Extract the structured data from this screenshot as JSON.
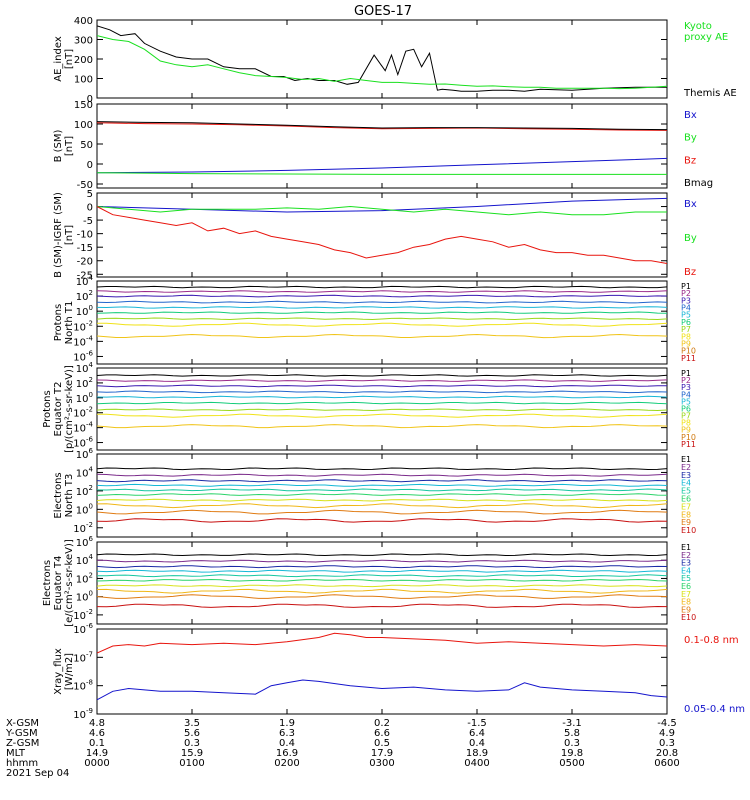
{
  "title": "GOES-17",
  "colors": {
    "black": "#000000",
    "red": "#e8150e",
    "green": "#19e01f",
    "blue": "#1414cc",
    "darkred": "#9a0a18",
    "p_channels": [
      "#000000",
      "#9a2a8a",
      "#3a1ab2",
      "#2266cc",
      "#17b6d6",
      "#13cc7a",
      "#9ad81a",
      "#f0e218",
      "#f0c418",
      "#d07a10",
      "#c81010"
    ],
    "e_channels": [
      "#000000",
      "#7a2a8a",
      "#1a2aa6",
      "#15b8d6",
      "#17c7a0",
      "#2bd36a",
      "#d8e21a",
      "#f0b718",
      "#e07b12",
      "#c81010"
    ]
  },
  "ticks": {
    "time": [
      0,
      60,
      120,
      180,
      240,
      300,
      360
    ],
    "rows": [
      {
        "label": "X-GSM",
        "values": [
          "4.8",
          "3.5",
          "1.9",
          "0.2",
          "-1.5",
          "-3.1",
          "-4.5"
        ]
      },
      {
        "label": "Y-GSM",
        "values": [
          "4.6",
          "5.6",
          "6.3",
          "6.6",
          "6.4",
          "5.8",
          "4.9"
        ]
      },
      {
        "label": "Z-GSM",
        "values": [
          "0.1",
          "0.3",
          "0.4",
          "0.5",
          "0.4",
          "0.3",
          "0.3"
        ]
      },
      {
        "label": "MLT",
        "values": [
          "14.9",
          "15.9",
          "16.9",
          "17.9",
          "18.9",
          "19.8",
          "20.8"
        ]
      },
      {
        "label": "hhmm",
        "values": [
          "0000",
          "0100",
          "0200",
          "0300",
          "0400",
          "0500",
          "0600"
        ]
      }
    ],
    "date": "2021 Sep 04"
  },
  "chart_data": [
    {
      "type": "line",
      "ylabel": "AE_index\n[nT]",
      "scale": "linear",
      "ylim": [
        0,
        400
      ],
      "yticks": [
        "0",
        "100",
        "200",
        "300",
        "400"
      ],
      "ytick_values": [
        0,
        100,
        200,
        300,
        400
      ],
      "legend": [
        {
          "text": "Kyoto\nproxy AE",
          "color": "#19e01f"
        },
        {
          "text": "Themis AE",
          "color": "#000000"
        }
      ],
      "series": [
        {
          "name": "Themis AE",
          "color": "#000000",
          "x": [
            0,
            8,
            15,
            24,
            30,
            40,
            50,
            60,
            70,
            80,
            90,
            100,
            110,
            118,
            125,
            133,
            140,
            150,
            158,
            165,
            175,
            182,
            186,
            190,
            195,
            200,
            205,
            210,
            215,
            218,
            225,
            230,
            240,
            250,
            260,
            270,
            280,
            300,
            320,
            340,
            360
          ],
          "y": [
            370,
            350,
            320,
            330,
            280,
            240,
            210,
            200,
            200,
            160,
            150,
            150,
            110,
            110,
            90,
            100,
            90,
            90,
            70,
            80,
            220,
            140,
            220,
            120,
            240,
            250,
            160,
            230,
            40,
            45,
            40,
            35,
            35,
            40,
            40,
            35,
            45,
            40,
            50,
            55,
            55
          ]
        },
        {
          "name": "Kyoto proxy AE",
          "color": "#19e01f",
          "x": [
            0,
            10,
            20,
            30,
            40,
            50,
            60,
            70,
            80,
            90,
            100,
            110,
            120,
            130,
            140,
            150,
            160,
            170,
            180,
            190,
            200,
            210,
            220,
            230,
            240,
            250,
            260,
            270,
            280,
            290,
            300,
            310,
            320,
            330,
            340,
            350,
            360
          ],
          "y": [
            320,
            300,
            290,
            250,
            190,
            170,
            160,
            170,
            150,
            130,
            115,
            110,
            105,
            95,
            100,
            85,
            100,
            90,
            80,
            80,
            75,
            70,
            72,
            65,
            60,
            62,
            58,
            55,
            55,
            50,
            50,
            50,
            50,
            48,
            50,
            55,
            60
          ]
        }
      ]
    },
    {
      "type": "line",
      "ylabel": "B (SM)\n[nT]",
      "scale": "linear",
      "ylim": [
        -60,
        150
      ],
      "yticks": [
        "-50",
        "0",
        "50",
        "100",
        "150"
      ],
      "ytick_values": [
        -50,
        0,
        50,
        100,
        150
      ],
      "legend": [
        {
          "text": "Bx",
          "color": "#1414cc"
        },
        {
          "text": "By",
          "color": "#19e01f"
        },
        {
          "text": "Bz",
          "color": "#e8150e"
        },
        {
          "text": "Bmag",
          "color": "#000000"
        }
      ],
      "series": [
        {
          "name": "Bx",
          "color": "#1414cc",
          "x": [
            0,
            60,
            120,
            180,
            240,
            300,
            360
          ],
          "y": [
            -22,
            -20,
            -16,
            -10,
            -2,
            6,
            14
          ]
        },
        {
          "name": "By",
          "color": "#19e01f",
          "x": [
            0,
            60,
            120,
            180,
            240,
            300,
            360
          ],
          "y": [
            -22,
            -24,
            -25,
            -26,
            -26,
            -26,
            -26
          ]
        },
        {
          "name": "Bz",
          "color": "#e8150e",
          "x": [
            0,
            30,
            60,
            90,
            120,
            150,
            180,
            210,
            240,
            270,
            300,
            330,
            360
          ],
          "y": [
            103,
            101,
            100,
            98,
            95,
            91,
            88,
            89,
            90,
            88,
            87,
            85,
            84
          ]
        },
        {
          "name": "Bmag",
          "color": "#000000",
          "x": [
            0,
            30,
            60,
            90,
            120,
            150,
            180,
            210,
            240,
            270,
            300,
            330,
            360
          ],
          "y": [
            106,
            104,
            103,
            100,
            97,
            93,
            90,
            91,
            91,
            90,
            89,
            87,
            86
          ]
        }
      ]
    },
    {
      "type": "line",
      "ylabel": "B (SM)-IGRF (SM)\n[nT]",
      "scale": "linear",
      "ylim": [
        -26,
        5
      ],
      "yticks": [
        "-25",
        "-20",
        "-15",
        "-10",
        "-5",
        "0",
        "5"
      ],
      "ytick_values": [
        -25,
        -20,
        -15,
        -10,
        -5,
        0,
        5
      ],
      "legend": [
        {
          "text": "Bx",
          "color": "#1414cc"
        },
        {
          "text": "By",
          "color": "#19e01f"
        },
        {
          "text": "Bz",
          "color": "#e8150e"
        }
      ],
      "series": [
        {
          "name": "Bx",
          "color": "#1414cc",
          "x": [
            0,
            60,
            120,
            180,
            240,
            300,
            360
          ],
          "y": [
            0,
            -1,
            -2,
            -1.5,
            0,
            2,
            3
          ]
        },
        {
          "name": "By",
          "color": "#19e01f",
          "x": [
            0,
            20,
            40,
            60,
            80,
            100,
            120,
            140,
            160,
            180,
            200,
            220,
            240,
            260,
            280,
            300,
            320,
            340,
            360
          ],
          "y": [
            0,
            -1,
            -2,
            -1,
            -1,
            -1,
            -0.5,
            -1,
            0,
            -1,
            -2,
            -1,
            -2,
            -3,
            -2,
            -3,
            -3,
            -2,
            -2
          ]
        },
        {
          "name": "Bz",
          "color": "#e8150e",
          "x": [
            0,
            10,
            20,
            30,
            40,
            50,
            60,
            70,
            80,
            90,
            100,
            110,
            120,
            130,
            140,
            150,
            160,
            170,
            180,
            190,
            200,
            210,
            220,
            230,
            240,
            250,
            260,
            270,
            280,
            290,
            300,
            310,
            320,
            330,
            340,
            350,
            360
          ],
          "y": [
            0,
            -3,
            -4,
            -5,
            -6,
            -7,
            -6,
            -9,
            -8,
            -10,
            -9,
            -11,
            -12,
            -13,
            -14,
            -16,
            -17,
            -19,
            -18,
            -17,
            -15,
            -14,
            -12,
            -11,
            -12,
            -13,
            -15,
            -14,
            -16,
            -17,
            -17,
            -18,
            -18,
            -19,
            -20,
            -20,
            -21
          ]
        }
      ]
    },
    {
      "type": "line",
      "ylabel": "Protons\nNorth T1",
      "scale": "log",
      "ylim": [
        -7,
        4
      ],
      "yticks": [
        "10^4",
        "10^2",
        "10^0",
        "10^-2",
        "10^-4",
        "10^-6"
      ],
      "ytick_values": [
        4,
        2,
        0,
        -2,
        -4,
        -6
      ],
      "legend": [
        {
          "text": "P1"
        },
        {
          "text": "P2"
        },
        {
          "text": "P3"
        },
        {
          "text": "P4"
        },
        {
          "text": "P5"
        },
        {
          "text": "P6"
        },
        {
          "text": "P7"
        },
        {
          "text": "P8"
        },
        {
          "text": "P9"
        },
        {
          "text": "P10"
        },
        {
          "text": "P11"
        }
      ],
      "levels": [
        3.2,
        2.6,
        2.0,
        1.2,
        0.5,
        -0.2,
        -1.0,
        -1.8,
        -3.3,
        null,
        null
      ]
    },
    {
      "type": "line",
      "ylabel": "Protons\nEquator T2\n[p/(cm²-s-sr-keV)]",
      "scale": "log",
      "ylim": [
        -7,
        4
      ],
      "yticks": [
        "10^4",
        "10^2",
        "10^0",
        "10^-2",
        "10^-4",
        "10^-6"
      ],
      "ytick_values": [
        4,
        2,
        0,
        -2,
        -4,
        -6
      ],
      "legend": [
        {
          "text": "P1"
        },
        {
          "text": "P2"
        },
        {
          "text": "P3"
        },
        {
          "text": "P4"
        },
        {
          "text": "P5"
        },
        {
          "text": "P6"
        },
        {
          "text": "P7"
        },
        {
          "text": "P8"
        },
        {
          "text": "P9"
        },
        {
          "text": "P10"
        },
        {
          "text": "P11"
        }
      ],
      "levels": [
        3.0,
        2.3,
        1.6,
        0.8,
        0.1,
        -0.7,
        -1.6,
        -2.4,
        -3.8,
        null,
        null
      ]
    },
    {
      "type": "line",
      "ylabel": "Electrons\nNorth T3",
      "scale": "log",
      "ylim": [
        -3,
        6
      ],
      "yticks": [
        "10^6",
        "10^4",
        "10^2",
        "10^0",
        "10^-2"
      ],
      "ytick_values": [
        6,
        4,
        2,
        0,
        -2
      ],
      "legend": [
        {
          "text": "E1"
        },
        {
          "text": "E2"
        },
        {
          "text": "E3"
        },
        {
          "text": "E4"
        },
        {
          "text": "E5"
        },
        {
          "text": "E6"
        },
        {
          "text": "E7"
        },
        {
          "text": "E8"
        },
        {
          "text": "E9"
        },
        {
          "text": "E10"
        }
      ],
      "levels": [
        4.4,
        3.7,
        3.1,
        2.6,
        2.1,
        1.6,
        1.0,
        0.4,
        -0.3,
        -1.2
      ]
    },
    {
      "type": "line",
      "ylabel": "Electrons\nEquator T4\n[e/(cm²-s-sr-keV)]",
      "scale": "log",
      "ylim": [
        -3,
        6
      ],
      "yticks": [
        "10^6",
        "10^4",
        "10^2",
        "10^0",
        "10^-2"
      ],
      "ytick_values": [
        6,
        4,
        2,
        0,
        -2
      ],
      "legend": [
        {
          "text": "E1"
        },
        {
          "text": "E2"
        },
        {
          "text": "E3"
        },
        {
          "text": "E4"
        },
        {
          "text": "E5"
        },
        {
          "text": "E6"
        },
        {
          "text": "E7"
        },
        {
          "text": "E8"
        },
        {
          "text": "E9"
        },
        {
          "text": "E10"
        }
      ],
      "levels": [
        4.6,
        3.9,
        3.3,
        2.8,
        2.3,
        1.8,
        1.2,
        0.6,
        0.0,
        -1.0
      ]
    },
    {
      "type": "line",
      "ylabel": "Xray_flux\n[W/m2]",
      "scale": "log",
      "ylim": [
        -9,
        -6
      ],
      "yticks": [
        "10^-6",
        "10^-7",
        "10^-8",
        "10^-9"
      ],
      "ytick_values": [
        -6,
        -7,
        -8,
        -9
      ],
      "legend": [
        {
          "text": "0.1-0.8 nm",
          "color": "#e8150e"
        },
        {
          "text": "0.05-0.4 nm",
          "color": "#1414cc"
        }
      ],
      "series": [
        {
          "name": "0.1-0.8 nm",
          "color": "#e8150e",
          "x": [
            0,
            10,
            20,
            30,
            40,
            60,
            80,
            100,
            120,
            140,
            150,
            160,
            170,
            180,
            200,
            220,
            240,
            260,
            280,
            300,
            320,
            340,
            360
          ],
          "y": [
            -6.85,
            -6.6,
            -6.55,
            -6.6,
            -6.5,
            -6.55,
            -6.5,
            -6.55,
            -6.45,
            -6.3,
            -6.15,
            -6.2,
            -6.3,
            -6.3,
            -6.35,
            -6.4,
            -6.5,
            -6.45,
            -6.5,
            -6.55,
            -6.6,
            -6.55,
            -6.6
          ]
        },
        {
          "name": "0.05-0.4 nm",
          "color": "#1414cc",
          "x": [
            0,
            10,
            20,
            30,
            40,
            60,
            80,
            100,
            110,
            120,
            130,
            140,
            160,
            180,
            200,
            220,
            240,
            260,
            270,
            280,
            300,
            320,
            340,
            350,
            360
          ],
          "y": [
            -8.5,
            -8.2,
            -8.1,
            -8.15,
            -8.2,
            -8.2,
            -8.25,
            -8.3,
            -8.0,
            -7.9,
            -7.8,
            -7.85,
            -8.0,
            -8.1,
            -8.05,
            -8.15,
            -8.2,
            -8.15,
            -7.9,
            -8.05,
            -8.15,
            -8.2,
            -8.25,
            -8.35,
            -8.4
          ]
        }
      ]
    }
  ]
}
